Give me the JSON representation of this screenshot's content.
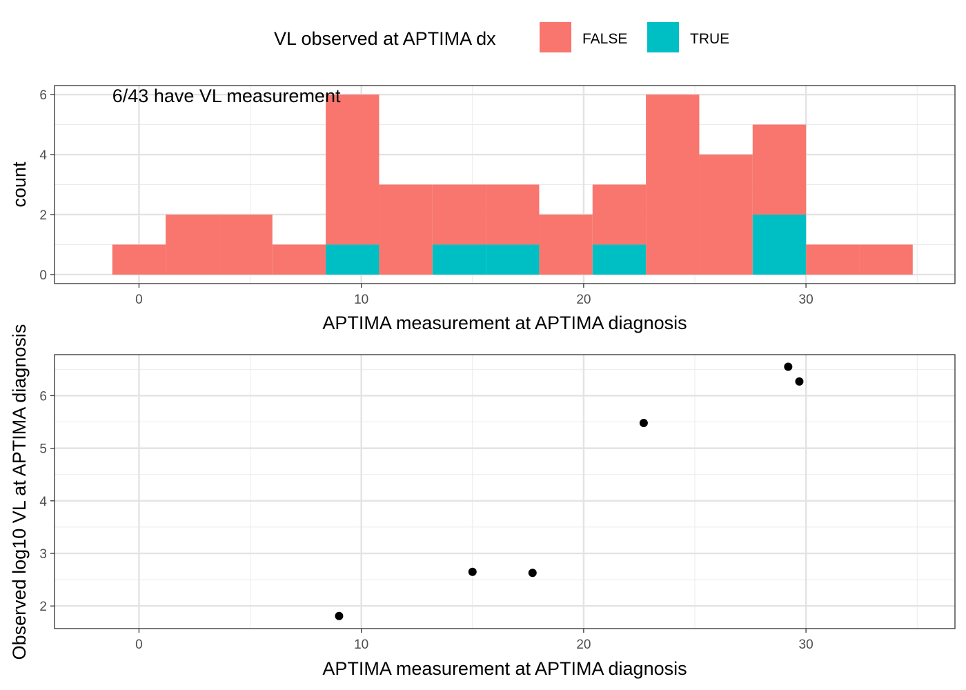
{
  "legend": {
    "title": "VL observed at APTIMA dx",
    "items": [
      {
        "label": "FALSE",
        "color": "#F8766D"
      },
      {
        "label": "TRUE",
        "color": "#00BFC4"
      }
    ]
  },
  "chart_data": [
    {
      "type": "bar",
      "subtype": "stacked-histogram",
      "annotation": "6/43 have VL measurement",
      "xlabel": "APTIMA measurement at APTIMA diagnosis",
      "ylabel": "count",
      "xlim": [
        -3.8,
        36.7
      ],
      "ylim": [
        -0.3,
        6.3
      ],
      "xticks": [
        0,
        10,
        20,
        30
      ],
      "yticks": [
        0,
        2,
        4,
        6
      ],
      "grid": true,
      "bins": [
        {
          "x0": -1.2,
          "x1": 1.2,
          "FALSE": 1,
          "TRUE": 0
        },
        {
          "x0": 1.2,
          "x1": 3.6,
          "FALSE": 2,
          "TRUE": 0
        },
        {
          "x0": 3.6,
          "x1": 6.0,
          "FALSE": 2,
          "TRUE": 0
        },
        {
          "x0": 6.0,
          "x1": 8.4,
          "FALSE": 1,
          "TRUE": 0
        },
        {
          "x0": 8.4,
          "x1": 10.8,
          "FALSE": 5,
          "TRUE": 1
        },
        {
          "x0": 10.8,
          "x1": 13.2,
          "FALSE": 3,
          "TRUE": 0
        },
        {
          "x0": 13.2,
          "x1": 15.6,
          "FALSE": 2,
          "TRUE": 1
        },
        {
          "x0": 15.6,
          "x1": 18.0,
          "FALSE": 2,
          "TRUE": 1
        },
        {
          "x0": 18.0,
          "x1": 20.4,
          "FALSE": 2,
          "TRUE": 0
        },
        {
          "x0": 20.4,
          "x1": 22.8,
          "FALSE": 2,
          "TRUE": 1
        },
        {
          "x0": 22.8,
          "x1": 25.2,
          "FALSE": 6,
          "TRUE": 0
        },
        {
          "x0": 25.2,
          "x1": 27.6,
          "FALSE": 4,
          "TRUE": 0
        },
        {
          "x0": 27.6,
          "x1": 30.0,
          "FALSE": 3,
          "TRUE": 2
        },
        {
          "x0": 30.0,
          "x1": 32.4,
          "FALSE": 1,
          "TRUE": 0
        },
        {
          "x0": 32.4,
          "x1": 34.8,
          "FALSE": 1,
          "TRUE": 0
        }
      ]
    },
    {
      "type": "scatter",
      "xlabel": "APTIMA measurement at APTIMA diagnosis",
      "ylabel": "Observed log10 VL at APTIMA diagnosis",
      "xlim": [
        -3.8,
        36.7
      ],
      "ylim": [
        1.57,
        6.78
      ],
      "xticks": [
        0,
        10,
        20,
        30
      ],
      "yticks": [
        2,
        3,
        4,
        5,
        6
      ],
      "grid": true,
      "point_color": "#000000",
      "points": [
        {
          "x": 9.0,
          "y": 1.81
        },
        {
          "x": 15.0,
          "y": 2.65
        },
        {
          "x": 17.7,
          "y": 2.63
        },
        {
          "x": 22.7,
          "y": 5.48
        },
        {
          "x": 29.2,
          "y": 6.55
        },
        {
          "x": 29.7,
          "y": 6.27
        }
      ]
    }
  ]
}
